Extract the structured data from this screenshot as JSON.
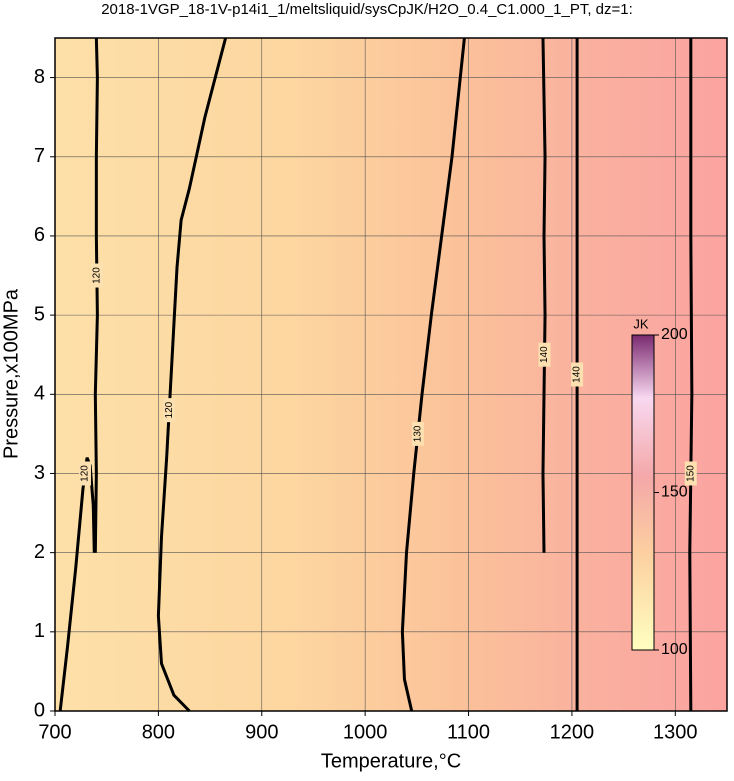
{
  "chart_data": {
    "type": "contour",
    "title": "2018-1VGP_18-1V-p14i1_1/meltsliquid/sysCpJK/H2O_0.4_C1.000_1_PT, dz=1:",
    "xlabel": "Temperature,°C",
    "ylabel": "Pressure,x100MPa",
    "xlim": [
      700,
      1350
    ],
    "ylim": [
      0,
      8.5
    ],
    "xticks": [
      700,
      800,
      900,
      1000,
      1100,
      1200,
      1300
    ],
    "yticks": [
      0,
      1,
      2,
      3,
      4,
      5,
      6,
      7,
      8
    ],
    "grid": true,
    "colorbar": {
      "label": "JK",
      "lim": [
        100,
        200
      ],
      "ticks": [
        100,
        150,
        200
      ]
    },
    "contours": [
      {
        "level": 120,
        "x": [
          705,
          712,
          720,
          727,
          731,
          734,
          737,
          738
        ],
        "y": [
          0,
          0.8,
          1.8,
          2.8,
          3.2,
          3.1,
          2.6,
          2.0
        ]
      },
      {
        "level": 120,
        "x": [
          739,
          740,
          739,
          741,
          740,
          740,
          741,
          740
        ],
        "y": [
          2.0,
          3.0,
          4.0,
          5.0,
          6.0,
          7.0,
          8.0,
          8.5
        ]
      },
      {
        "level": 120,
        "x": [
          830,
          815,
          803,
          800,
          803,
          808,
          813,
          818,
          822,
          830,
          845,
          865
        ],
        "y": [
          0,
          0.2,
          0.6,
          1.2,
          2.2,
          3.2,
          4.4,
          5.6,
          6.2,
          6.6,
          7.5,
          8.5
        ]
      },
      {
        "level": 130,
        "x": [
          1045,
          1038,
          1036,
          1040,
          1047,
          1055,
          1064,
          1074,
          1084,
          1096
        ],
        "y": [
          0,
          0.4,
          1.0,
          2.0,
          3.0,
          4.0,
          5.0,
          6.0,
          7.0,
          8.5
        ]
      },
      {
        "level": 140,
        "x": [
          1173,
          1172,
          1173,
          1174,
          1173,
          1174,
          1172
        ],
        "y": [
          2.0,
          3.0,
          4.0,
          5.0,
          6.0,
          7.0,
          8.5
        ]
      },
      {
        "level": 140,
        "x": [
          1205,
          1205
        ],
        "y": [
          0,
          8.5
        ]
      },
      {
        "level": 150,
        "x": [
          1315,
          1314,
          1316,
          1315,
          1315
        ],
        "y": [
          0,
          2.0,
          4.0,
          6.0,
          8.5
        ]
      }
    ]
  }
}
